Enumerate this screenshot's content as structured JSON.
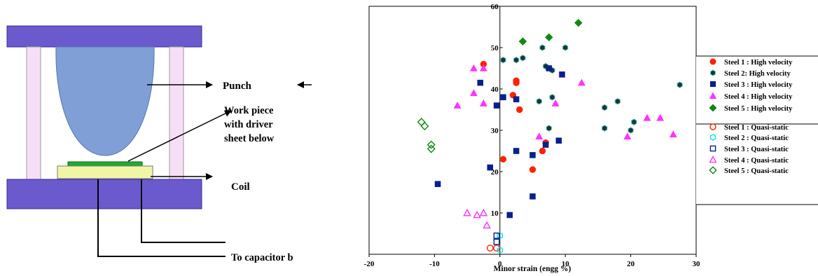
{
  "diagram": {
    "punch_label": "Punch",
    "workpiece_lines": [
      "Work piece",
      "with driver",
      "sheet below"
    ],
    "coil_label": "Coil",
    "capacitor_label": "To capacitor b",
    "colors": {
      "plate": "#6a5acd",
      "punch": "#7f9fd6",
      "column": "#f6dff6",
      "coil": "#f1f6a6",
      "workpiece": "#22aa33"
    }
  },
  "chart_data": {
    "type": "scatter",
    "xlabel": "Minor strain (engg %)",
    "ylabel": "",
    "xlim": [
      -20,
      30
    ],
    "ylim": [
      0,
      60
    ],
    "x_ticks": [
      "-20",
      "-10",
      "0",
      "10",
      "20",
      "30"
    ],
    "y_ticks": [
      "10",
      "20",
      "30",
      "40",
      "50",
      "60"
    ],
    "grid": false,
    "legend_position": "right",
    "series": [
      {
        "name": "Steel 1 :  High velocity",
        "marker": "circle",
        "filled": true,
        "color": "#ff2200",
        "points": [
          [
            -2.5,
            46
          ],
          [
            2,
            38.5
          ],
          [
            2.5,
            42
          ],
          [
            2.5,
            41.5
          ],
          [
            3,
            35
          ],
          [
            0.5,
            23
          ],
          [
            5,
            20.5
          ],
          [
            6.5,
            25
          ],
          [
            7,
            27
          ]
        ]
      },
      {
        "name": "Steel 2: High velocity",
        "marker": "hexagon",
        "filled": true,
        "color": "#0b3d3d",
        "points": [
          [
            0.5,
            47
          ],
          [
            2.5,
            47
          ],
          [
            3.5,
            47.5
          ],
          [
            6.5,
            50
          ],
          [
            10,
            50
          ],
          [
            7,
            45.5
          ],
          [
            8,
            44.5
          ],
          [
            6,
            37
          ],
          [
            8,
            38
          ],
          [
            7.5,
            30.5
          ],
          [
            16,
            35.5
          ],
          [
            18,
            37
          ],
          [
            20,
            30
          ],
          [
            20.5,
            32
          ],
          [
            16,
            30.5
          ],
          [
            27.5,
            41
          ]
        ]
      },
      {
        "name": "Steel  3 : High velocity",
        "marker": "square",
        "filled": true,
        "color": "#0a1f8f",
        "points": [
          [
            -3,
            41.5
          ],
          [
            -0.5,
            36
          ],
          [
            0.5,
            38
          ],
          [
            2.5,
            37.5
          ],
          [
            7.5,
            45
          ],
          [
            9.5,
            43.5
          ],
          [
            7,
            26.5
          ],
          [
            9,
            27.5
          ],
          [
            2.5,
            25
          ],
          [
            5,
            24
          ],
          [
            -1.5,
            21
          ],
          [
            -9.5,
            17
          ],
          [
            5,
            14
          ],
          [
            1.5,
            9.5
          ]
        ]
      },
      {
        "name": "Steel  4 : High velocity",
        "marker": "triangle",
        "filled": true,
        "color": "#ff33ff",
        "points": [
          [
            -4,
            45
          ],
          [
            -2.5,
            45
          ],
          [
            -4,
            39
          ],
          [
            -2.5,
            36.5
          ],
          [
            -6.5,
            36
          ],
          [
            8.5,
            36.5
          ],
          [
            12.5,
            41.5
          ],
          [
            6,
            28.5
          ],
          [
            19.5,
            28.5
          ],
          [
            22.5,
            33
          ],
          [
            24.5,
            33
          ],
          [
            26.5,
            29
          ]
        ]
      },
      {
        "name": "Steel  5 : High velocity",
        "marker": "diamond",
        "filled": true,
        "color": "#118811",
        "points": [
          [
            3.5,
            51.5
          ],
          [
            7.5,
            52.5
          ],
          [
            12,
            56
          ]
        ]
      },
      {
        "name": "Steel  1 : Quasi-static",
        "marker": "circle",
        "filled": false,
        "color": "#ff2200",
        "points": [
          [
            -1.5,
            1.5
          ],
          [
            -0.5,
            1.5
          ]
        ]
      },
      {
        "name": "Steel  2 : Quasi-static",
        "marker": "hexagon",
        "filled": false,
        "color": "#00e0f0",
        "points": [
          [
            0,
            1
          ],
          [
            0,
            4.5
          ]
        ]
      },
      {
        "name": "Steel  3 : Quasi-static",
        "marker": "square",
        "filled": false,
        "color": "#0a1f8f",
        "points": [
          [
            -0.5,
            4.5
          ],
          [
            -0.5,
            3
          ]
        ]
      },
      {
        "name": "Steel  4 : Quasi-static",
        "marker": "triangle",
        "filled": false,
        "color": "#ff33ff",
        "points": [
          [
            -5,
            10
          ],
          [
            -3.5,
            9.5
          ],
          [
            -2.5,
            10
          ],
          [
            -2,
            7
          ]
        ]
      },
      {
        "name": "Steel  5 : Quasi-static",
        "marker": "diamond",
        "filled": false,
        "color": "#118811",
        "points": [
          [
            -12,
            32
          ],
          [
            -11.5,
            31
          ],
          [
            -10.5,
            26.5
          ],
          [
            -10.5,
            25.5
          ]
        ]
      }
    ]
  }
}
